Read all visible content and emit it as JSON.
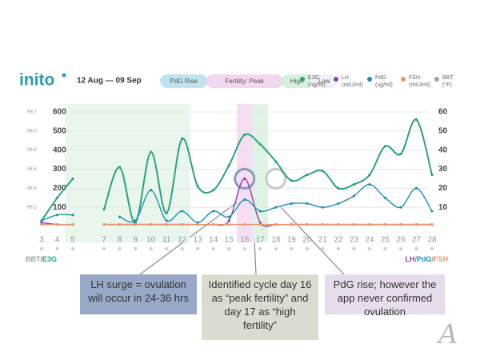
{
  "header": {
    "logo": "inito",
    "date_range": "12 Aug — 09 Sep",
    "pills": [
      {
        "label": "PdG Rise",
        "color": "#bfe4ef"
      },
      {
        "label": "Fertility: Peak",
        "color": "#f2d7f0"
      },
      {
        "label": "High",
        "color": "#d5f0dc"
      },
      {
        "label": "Low",
        "color": "#eef2f6"
      }
    ]
  },
  "chart_data": {
    "type": "line",
    "x": [
      3,
      4,
      5,
      6,
      7,
      8,
      9,
      10,
      11,
      12,
      13,
      14,
      15,
      16,
      17,
      18,
      19,
      20,
      21,
      22,
      23,
      24,
      25,
      26,
      27,
      28
    ],
    "xlim": [
      3,
      28
    ],
    "xticks": [
      3,
      4,
      5,
      7,
      8,
      9,
      10,
      11,
      12,
      13,
      14,
      15,
      16,
      17,
      18,
      19,
      20,
      21,
      22,
      23,
      24,
      25,
      26,
      27,
      28
    ],
    "ylim": [
      0,
      600
    ],
    "yticks": [
      100,
      200,
      300,
      400,
      500,
      600
    ],
    "y2lim": [
      0,
      60
    ],
    "y2ticks": [
      10,
      20,
      30,
      40,
      50,
      60
    ],
    "bbt_lim": [
      98.0,
      99.2
    ],
    "bbt_ticks": [
      98.2,
      98.4,
      98.6,
      98.8,
      {
        "value": 99,
        "label": "99.0"
      },
      99.2
    ],
    "grid": true,
    "bands": [
      {
        "from": 4.5,
        "to": 12.5,
        "color": "#e8f6ec"
      },
      {
        "from": 15.5,
        "to": 16.5,
        "color": "#f5ddf3"
      },
      {
        "from": 16.5,
        "to": 17.5,
        "color": "#dff3e4"
      }
    ],
    "series": [
      {
        "name": "E3G",
        "unit": "(ng/ml)",
        "color": "#2aa27c",
        "axis": "y",
        "values": [
          30,
          150,
          250,
          null,
          90,
          310,
          20,
          390,
          70,
          460,
          210,
          190,
          320,
          480,
          430,
          340,
          240,
          270,
          290,
          200,
          220,
          270,
          420,
          380,
          560,
          270
        ]
      },
      {
        "name": "LH",
        "unit": "(mIU/ml)",
        "color": "#8e3fb0",
        "axis": "y2",
        "values": [
          2,
          1,
          1,
          null,
          1,
          1,
          1,
          1,
          1,
          1,
          1,
          1,
          3,
          25,
          2,
          1,
          1,
          1,
          1,
          1,
          1,
          1,
          1,
          1,
          1,
          1
        ]
      },
      {
        "name": "PdG",
        "unit": "(ug/ml)",
        "color": "#1f8fb0",
        "axis": "y2",
        "values": [
          3,
          6,
          6,
          null,
          null,
          5,
          3,
          19,
          3,
          8,
          2,
          8,
          5,
          14,
          8,
          10,
          12,
          12,
          10,
          12,
          16,
          22,
          15,
          10,
          20,
          8
        ]
      },
      {
        "name": "FSH",
        "unit": "(mIU/ml)",
        "color": "#e8946a",
        "axis": "y2",
        "values": [
          1,
          1,
          1,
          null,
          1,
          1,
          1,
          1,
          1,
          1,
          1,
          1,
          1,
          1,
          1,
          1,
          1,
          1,
          1,
          1,
          1,
          1,
          1,
          1,
          1,
          1
        ]
      },
      {
        "name": "BBT",
        "unit": "(°F)",
        "color": "#9aa3a8",
        "axis": "bbt",
        "values": [
          null,
          null,
          null,
          null,
          null,
          null,
          null,
          null,
          null,
          null,
          null,
          null,
          null,
          null,
          null,
          null,
          null,
          null,
          null,
          null,
          null,
          null,
          null,
          null,
          null,
          null
        ]
      }
    ],
    "left_axis_label": [
      "BBT",
      "/",
      "E3G"
    ],
    "right_axis_label": [
      "LH",
      "/",
      "PdG",
      "/",
      "FSH"
    ]
  },
  "callouts": [
    "LH surge = ovulation will occur in 24-36 hrs",
    "Identified cycle day 16 as “peak fertility” and day 17 as “high fertility”",
    "PdG rise; however the app never confirmed ovulation"
  ],
  "signature": "A"
}
